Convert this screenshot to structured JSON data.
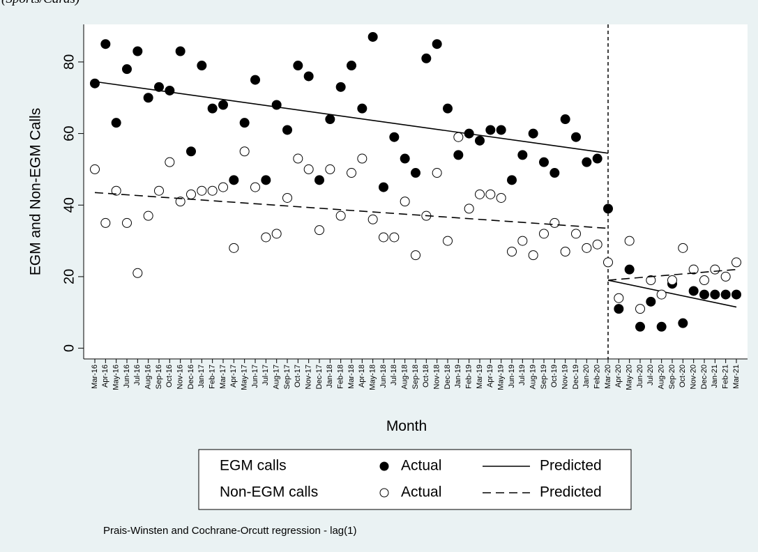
{
  "chart_data": {
    "type": "scatter-line",
    "subtitle": "(Sports/Cards)",
    "ylabel": "EGM and Non-EGM Calls",
    "xlabel": "Month",
    "note": "Prais-Winsten and Cochrane-Orcutt regression - lag(1)",
    "categories": [
      "Mar-16",
      "Apr-16",
      "May-16",
      "Jun-16",
      "Jul-16",
      "Aug-16",
      "Sep-16",
      "Oct-16",
      "Nov-16",
      "Dec-16",
      "Jan-17",
      "Feb-17",
      "Mar-17",
      "Apr-17",
      "May-17",
      "Jun-17",
      "Jul-17",
      "Aug-17",
      "Sep-17",
      "Oct-17",
      "Nov-17",
      "Dec-17",
      "Jan-18",
      "Feb-18",
      "Mar-18",
      "Apr-18",
      "May-18",
      "Jun-18",
      "Jul-18",
      "Aug-18",
      "Sep-18",
      "Oct-18",
      "Nov-18",
      "Dec-18",
      "Jan-19",
      "Feb-19",
      "Mar-19",
      "Apr-19",
      "May-19",
      "Jun-19",
      "Jul-19",
      "Aug-19",
      "Sep-19",
      "Oct-19",
      "Nov-19",
      "Dec-19",
      "Jan-20",
      "Feb-20",
      "Mar-20",
      "Apr-20",
      "May-20",
      "Jun-20",
      "Jul-20",
      "Aug-20",
      "Sep-20",
      "Oct-20",
      "Nov-20",
      "Dec-20",
      "Jan-21",
      "Feb-21",
      "Mar-21"
    ],
    "intervention": "Mar-20",
    "ylim": [
      -3,
      90.5
    ],
    "yticks": [
      0,
      20,
      40,
      60,
      80
    ],
    "grid": false,
    "series": [
      {
        "group": "EGM calls",
        "name": "Actual",
        "marker": "filled",
        "color": "#000000",
        "values": [
          74,
          85,
          63,
          78,
          83,
          70,
          73,
          72,
          83,
          55,
          79,
          67,
          68,
          47,
          63,
          75,
          47,
          68,
          61,
          79,
          76,
          47,
          64,
          73,
          79,
          67,
          87,
          45,
          59,
          53,
          49,
          81,
          85,
          67,
          54,
          60,
          58,
          61,
          61,
          47,
          54,
          60,
          52,
          49,
          64,
          59,
          52,
          53,
          39,
          11,
          22,
          6,
          13,
          6,
          18,
          7,
          16,
          15,
          15,
          15,
          15
        ]
      },
      {
        "group": "EGM calls",
        "name": "Predicted",
        "dash": "solid",
        "color": "#000000",
        "segments": [
          {
            "x": [
              "Mar-16",
              "Mar-20"
            ],
            "values": [
              74.5,
              54.5
            ]
          },
          {
            "x": [
              "Mar-20",
              "Mar-21"
            ],
            "values": [
              19,
              11.5
            ]
          }
        ]
      },
      {
        "group": "Non-EGM calls",
        "name": "Actual",
        "marker": "hollow",
        "color": "#000000",
        "values": [
          50,
          35,
          44,
          35,
          21,
          37,
          44,
          52,
          41,
          43,
          44,
          44,
          45,
          28,
          55,
          45,
          31,
          32,
          42,
          53,
          50,
          33,
          50,
          37,
          49,
          53,
          36,
          31,
          31,
          41,
          26,
          37,
          49,
          30,
          59,
          39,
          43,
          43,
          42,
          27,
          30,
          26,
          32,
          35,
          27,
          32,
          28,
          29,
          24,
          14,
          30,
          11,
          19,
          15,
          19,
          28,
          22,
          19,
          22,
          20,
          24
        ]
      },
      {
        "group": "Non-EGM calls",
        "name": "Predicted",
        "dash": "dashed",
        "color": "#000000",
        "segments": [
          {
            "x": [
              "Mar-16",
              "Mar-20"
            ],
            "values": [
              43.5,
              33.5
            ]
          },
          {
            "x": [
              "Mar-20",
              "Mar-21"
            ],
            "values": [
              19,
              22
            ]
          }
        ]
      }
    ]
  }
}
